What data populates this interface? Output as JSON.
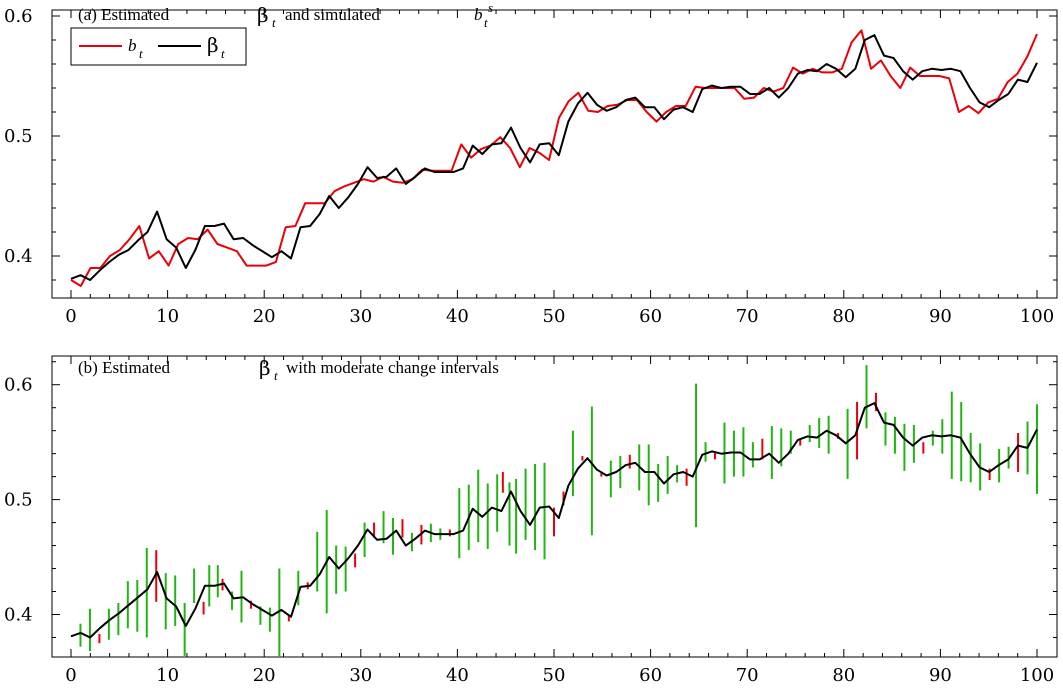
{
  "chart_data": [
    {
      "type": "line",
      "title": "(a) Estimated β t and simulated b t s",
      "title_parts": {
        "prefix": "(a) Estimated",
        "beta": "β",
        "beta_sub": "t",
        "mid": "and simulated",
        "b": "b",
        "b_sub": "t",
        "b_sup": "s"
      },
      "xlim": [
        0,
        100
      ],
      "ylim": [
        0.365,
        0.605
      ],
      "xticks": [
        0,
        10,
        20,
        30,
        40,
        50,
        60,
        70,
        80,
        90,
        100
      ],
      "yticks": [
        0.4,
        0.5,
        0.6
      ],
      "ytick_labels": [
        "0.4",
        "0.5",
        "0.6"
      ],
      "legend": {
        "placement": "top-left",
        "entries": [
          {
            "name": "b",
            "sub": "t",
            "color": "#e8000b"
          },
          {
            "name": "β",
            "sub": "t",
            "color": "#000000"
          }
        ]
      },
      "series": [
        {
          "name": "b t",
          "color": "#e8000b",
          "values": [
            0.38,
            0.375,
            0.39,
            0.39,
            0.4,
            0.405,
            0.414,
            0.425,
            0.398,
            0.404,
            0.392,
            0.41,
            0.415,
            0.414,
            0.422,
            0.41,
            0.407,
            0.404,
            0.392,
            0.392,
            0.392,
            0.395,
            0.424,
            0.425,
            0.444,
            0.444,
            0.444,
            0.454,
            0.458,
            0.461,
            0.464,
            0.462,
            0.466,
            0.462,
            0.461,
            0.464,
            0.472,
            0.471,
            0.471,
            0.471,
            0.493,
            0.482,
            0.489,
            0.492,
            0.499,
            0.49,
            0.474,
            0.49,
            0.486,
            0.48,
            0.515,
            0.529,
            0.536,
            0.521,
            0.52,
            0.525,
            0.526,
            0.53,
            0.53,
            0.52,
            0.512,
            0.52,
            0.525,
            0.525,
            0.541,
            0.54,
            0.54,
            0.54,
            0.54,
            0.531,
            0.532,
            0.54,
            0.537,
            0.54,
            0.557,
            0.552,
            0.556,
            0.553,
            0.553,
            0.556,
            0.578,
            0.588,
            0.556,
            0.563,
            0.55,
            0.54,
            0.557,
            0.55,
            0.55,
            0.55,
            0.548,
            0.52,
            0.525,
            0.519,
            0.528,
            0.531,
            0.545,
            0.552,
            0.566,
            0.585
          ]
        },
        {
          "name": "β t",
          "color": "#000000",
          "values": [
            0.381,
            0.384,
            0.38,
            0.388,
            0.395,
            0.401,
            0.405,
            0.413,
            0.42,
            0.437,
            0.414,
            0.407,
            0.39,
            0.405,
            0.425,
            0.425,
            0.427,
            0.414,
            0.415,
            0.409,
            0.404,
            0.399,
            0.404,
            0.398,
            0.424,
            0.425,
            0.435,
            0.45,
            0.44,
            0.449,
            0.46,
            0.474,
            0.465,
            0.466,
            0.473,
            0.46,
            0.466,
            0.473,
            0.47,
            0.47,
            0.47,
            0.473,
            0.492,
            0.485,
            0.493,
            0.494,
            0.507,
            0.49,
            0.478,
            0.493,
            0.494,
            0.484,
            0.512,
            0.527,
            0.536,
            0.526,
            0.521,
            0.524,
            0.53,
            0.532,
            0.524,
            0.524,
            0.514,
            0.522,
            0.524,
            0.52,
            0.539,
            0.542,
            0.54,
            0.541,
            0.541,
            0.535,
            0.535,
            0.54,
            0.532,
            0.54,
            0.552,
            0.555,
            0.554,
            0.56,
            0.556,
            0.549,
            0.556,
            0.58,
            0.584,
            0.567,
            0.565,
            0.554,
            0.547,
            0.554,
            0.556,
            0.555,
            0.556,
            0.554,
            0.54,
            0.528,
            0.524,
            0.53,
            0.535,
            0.547,
            0.545,
            0.561
          ]
        }
      ]
    },
    {
      "type": "line",
      "title": "(b) Estimated β t with moderate change intervals",
      "title_parts": {
        "prefix": "(b) Estimated",
        "beta": "β",
        "beta_sub": "t",
        "rest": "with moderate change intervals"
      },
      "xlim": [
        0,
        100
      ],
      "ylim": [
        0.363,
        0.625
      ],
      "xticks": [
        0,
        10,
        20,
        30,
        40,
        50,
        60,
        70,
        80,
        90,
        100
      ],
      "yticks": [
        0.4,
        0.5,
        0.6
      ],
      "ytick_labels": [
        "0.4",
        "0.5",
        "0.6"
      ],
      "series": [
        {
          "name": "β t",
          "color": "#000000",
          "values": [
            0.381,
            0.384,
            0.38,
            0.388,
            0.395,
            0.401,
            0.408,
            0.415,
            0.422,
            0.437,
            0.414,
            0.407,
            0.39,
            0.405,
            0.425,
            0.425,
            0.427,
            0.414,
            0.415,
            0.409,
            0.404,
            0.399,
            0.404,
            0.398,
            0.424,
            0.425,
            0.435,
            0.45,
            0.44,
            0.449,
            0.46,
            0.474,
            0.465,
            0.466,
            0.473,
            0.46,
            0.466,
            0.473,
            0.47,
            0.47,
            0.47,
            0.473,
            0.492,
            0.485,
            0.493,
            0.49,
            0.507,
            0.49,
            0.478,
            0.493,
            0.494,
            0.484,
            0.512,
            0.527,
            0.536,
            0.526,
            0.521,
            0.524,
            0.53,
            0.532,
            0.524,
            0.524,
            0.514,
            0.522,
            0.524,
            0.52,
            0.539,
            0.542,
            0.54,
            0.541,
            0.541,
            0.535,
            0.535,
            0.54,
            0.532,
            0.54,
            0.552,
            0.555,
            0.554,
            0.56,
            0.556,
            0.549,
            0.556,
            0.58,
            0.584,
            0.567,
            0.565,
            0.554,
            0.547,
            0.554,
            0.556,
            0.555,
            0.556,
            0.554,
            0.54,
            0.528,
            0.524,
            0.53,
            0.535,
            0.547,
            0.545,
            0.561
          ]
        }
      ],
      "intervals": [
        {
          "x": 1,
          "lo": 0.372,
          "hi": 0.392,
          "color": "#22b512"
        },
        {
          "x": 2,
          "lo": 0.368,
          "hi": 0.405,
          "color": "#22b512"
        },
        {
          "x": 3,
          "lo": 0.375,
          "hi": 0.383,
          "color": "#e8000b"
        },
        {
          "x": 4,
          "lo": 0.378,
          "hi": 0.405,
          "color": "#22b512"
        },
        {
          "x": 5,
          "lo": 0.382,
          "hi": 0.41,
          "color": "#22b512"
        },
        {
          "x": 6,
          "lo": 0.388,
          "hi": 0.429,
          "color": "#22b512"
        },
        {
          "x": 7,
          "lo": 0.385,
          "hi": 0.43,
          "color": "#22b512"
        },
        {
          "x": 8,
          "lo": 0.38,
          "hi": 0.458,
          "color": "#22b512"
        },
        {
          "x": 9,
          "lo": 0.411,
          "hi": 0.456,
          "color": "#e8000b"
        },
        {
          "x": 10,
          "lo": 0.387,
          "hi": 0.436,
          "color": "#22b512"
        },
        {
          "x": 11,
          "lo": 0.39,
          "hi": 0.434,
          "color": "#22b512"
        },
        {
          "x": 12,
          "lo": 0.364,
          "hi": 0.41,
          "color": "#22b512"
        },
        {
          "x": 13,
          "lo": 0.41,
          "hi": 0.44,
          "color": "#22b512"
        },
        {
          "x": 14,
          "lo": 0.4,
          "hi": 0.411,
          "color": "#e8000b"
        },
        {
          "x": 14.6,
          "lo": 0.407,
          "hi": 0.443,
          "color": "#22b512"
        },
        {
          "x": 15.5,
          "lo": 0.415,
          "hi": 0.443,
          "color": "#22b512"
        },
        {
          "x": 16,
          "lo": 0.421,
          "hi": 0.431,
          "color": "#e8000b"
        },
        {
          "x": 17,
          "lo": 0.404,
          "hi": 0.42,
          "color": "#22b512"
        },
        {
          "x": 18,
          "lo": 0.393,
          "hi": 0.438,
          "color": "#22b512"
        },
        {
          "x": 19,
          "lo": 0.405,
          "hi": 0.412,
          "color": "#e8000b"
        },
        {
          "x": 20,
          "lo": 0.391,
          "hi": 0.407,
          "color": "#22b512"
        },
        {
          "x": 21,
          "lo": 0.385,
          "hi": 0.406,
          "color": "#22b512"
        },
        {
          "x": 22,
          "lo": 0.363,
          "hi": 0.44,
          "color": "#22b512"
        },
        {
          "x": 23,
          "lo": 0.394,
          "hi": 0.4,
          "color": "#e8000b"
        },
        {
          "x": 24,
          "lo": 0.408,
          "hi": 0.438,
          "color": "#22b512"
        },
        {
          "x": 25,
          "lo": 0.422,
          "hi": 0.428,
          "color": "#e8000b"
        },
        {
          "x": 26,
          "lo": 0.42,
          "hi": 0.472,
          "color": "#22b512"
        },
        {
          "x": 27,
          "lo": 0.401,
          "hi": 0.491,
          "color": "#22b512"
        },
        {
          "x": 28,
          "lo": 0.418,
          "hi": 0.46,
          "color": "#22b512"
        },
        {
          "x": 29,
          "lo": 0.42,
          "hi": 0.459,
          "color": "#22b512"
        },
        {
          "x": 30,
          "lo": 0.441,
          "hi": 0.453,
          "color": "#e8000b"
        },
        {
          "x": 31,
          "lo": 0.45,
          "hi": 0.48,
          "color": "#22b512"
        },
        {
          "x": 32,
          "lo": 0.467,
          "hi": 0.48,
          "color": "#e8000b"
        },
        {
          "x": 33,
          "lo": 0.462,
          "hi": 0.49,
          "color": "#22b512"
        },
        {
          "x": 34,
          "lo": 0.452,
          "hi": 0.484,
          "color": "#22b512"
        },
        {
          "x": 35,
          "lo": 0.467,
          "hi": 0.483,
          "color": "#e8000b"
        },
        {
          "x": 36,
          "lo": 0.455,
          "hi": 0.471,
          "color": "#22b512"
        },
        {
          "x": 37,
          "lo": 0.461,
          "hi": 0.478,
          "color": "#e8000b"
        },
        {
          "x": 38,
          "lo": 0.463,
          "hi": 0.479,
          "color": "#22b512"
        },
        {
          "x": 39,
          "lo": 0.465,
          "hi": 0.475,
          "color": "#22b512"
        },
        {
          "x": 40,
          "lo": 0.468,
          "hi": 0.474,
          "color": "#e8000b"
        },
        {
          "x": 41,
          "lo": 0.449,
          "hi": 0.51,
          "color": "#22b512"
        },
        {
          "x": 42,
          "lo": 0.456,
          "hi": 0.513,
          "color": "#22b512"
        },
        {
          "x": 43,
          "lo": 0.463,
          "hi": 0.526,
          "color": "#22b512"
        },
        {
          "x": 44,
          "lo": 0.457,
          "hi": 0.514,
          "color": "#22b512"
        },
        {
          "x": 45,
          "lo": 0.472,
          "hi": 0.522,
          "color": "#22b512"
        },
        {
          "x": 45.6,
          "lo": 0.506,
          "hi": 0.524,
          "color": "#e8000b"
        },
        {
          "x": 46.3,
          "lo": 0.46,
          "hi": 0.515,
          "color": "#22b512"
        },
        {
          "x": 47,
          "lo": 0.453,
          "hi": 0.518,
          "color": "#22b512"
        },
        {
          "x": 48,
          "lo": 0.465,
          "hi": 0.527,
          "color": "#22b512"
        },
        {
          "x": 49,
          "lo": 0.456,
          "hi": 0.531,
          "color": "#22b512"
        },
        {
          "x": 50,
          "lo": 0.448,
          "hi": 0.532,
          "color": "#22b512"
        },
        {
          "x": 51,
          "lo": 0.468,
          "hi": 0.493,
          "color": "#e8000b"
        },
        {
          "x": 52,
          "lo": 0.495,
          "hi": 0.507,
          "color": "#e8000b"
        },
        {
          "x": 53,
          "lo": 0.503,
          "hi": 0.56,
          "color": "#22b512"
        },
        {
          "x": 54,
          "lo": 0.534,
          "hi": 0.538,
          "color": "#e8000b"
        },
        {
          "x": 55,
          "lo": 0.469,
          "hi": 0.581,
          "color": "#22b512"
        },
        {
          "x": 56,
          "lo": 0.52,
          "hi": 0.523,
          "color": "#e8000b"
        },
        {
          "x": 57,
          "lo": 0.502,
          "hi": 0.534,
          "color": "#22b512"
        },
        {
          "x": 58,
          "lo": 0.51,
          "hi": 0.538,
          "color": "#22b512"
        },
        {
          "x": 59,
          "lo": 0.527,
          "hi": 0.539,
          "color": "#e8000b"
        },
        {
          "x": 60,
          "lo": 0.508,
          "hi": 0.548,
          "color": "#22b512"
        },
        {
          "x": 61,
          "lo": 0.495,
          "hi": 0.548,
          "color": "#22b512"
        },
        {
          "x": 62,
          "lo": 0.498,
          "hi": 0.531,
          "color": "#22b512"
        },
        {
          "x": 63,
          "lo": 0.505,
          "hi": 0.538,
          "color": "#22b512"
        },
        {
          "x": 64,
          "lo": 0.515,
          "hi": 0.53,
          "color": "#22b512"
        },
        {
          "x": 65,
          "lo": 0.512,
          "hi": 0.527,
          "color": "#e8000b"
        },
        {
          "x": 66,
          "lo": 0.476,
          "hi": 0.601,
          "color": "#22b512"
        },
        {
          "x": 67,
          "lo": 0.533,
          "hi": 0.55,
          "color": "#22b512"
        },
        {
          "x": 68,
          "lo": 0.535,
          "hi": 0.542,
          "color": "#e8000b"
        },
        {
          "x": 69,
          "lo": 0.514,
          "hi": 0.567,
          "color": "#22b512"
        },
        {
          "x": 70,
          "lo": 0.52,
          "hi": 0.56,
          "color": "#22b512"
        },
        {
          "x": 71,
          "lo": 0.52,
          "hi": 0.563,
          "color": "#22b512"
        },
        {
          "x": 72,
          "lo": 0.528,
          "hi": 0.55,
          "color": "#22b512"
        },
        {
          "x": 73,
          "lo": 0.535,
          "hi": 0.553,
          "color": "#e8000b"
        },
        {
          "x": 74,
          "lo": 0.518,
          "hi": 0.564,
          "color": "#22b512"
        },
        {
          "x": 75,
          "lo": 0.529,
          "hi": 0.562,
          "color": "#22b512"
        },
        {
          "x": 76,
          "lo": 0.54,
          "hi": 0.56,
          "color": "#22b512"
        },
        {
          "x": 77,
          "lo": 0.547,
          "hi": 0.553,
          "color": "#e8000b"
        },
        {
          "x": 78,
          "lo": 0.55,
          "hi": 0.565,
          "color": "#22b512"
        },
        {
          "x": 79,
          "lo": 0.545,
          "hi": 0.571,
          "color": "#22b512"
        },
        {
          "x": 80,
          "lo": 0.54,
          "hi": 0.573,
          "color": "#22b512"
        },
        {
          "x": 81,
          "lo": 0.553,
          "hi": 0.558,
          "color": "#e8000b"
        },
        {
          "x": 82,
          "lo": 0.518,
          "hi": 0.579,
          "color": "#22b512"
        },
        {
          "x": 83,
          "lo": 0.535,
          "hi": 0.585,
          "color": "#e8000b"
        },
        {
          "x": 84,
          "lo": 0.562,
          "hi": 0.617,
          "color": "#22b512"
        },
        {
          "x": 85,
          "lo": 0.577,
          "hi": 0.593,
          "color": "#e8000b"
        },
        {
          "x": 86,
          "lo": 0.547,
          "hi": 0.576,
          "color": "#22b512"
        },
        {
          "x": 87,
          "lo": 0.54,
          "hi": 0.572,
          "color": "#22b512"
        },
        {
          "x": 88,
          "lo": 0.525,
          "hi": 0.566,
          "color": "#22b512"
        },
        {
          "x": 89,
          "lo": 0.532,
          "hi": 0.565,
          "color": "#22b512"
        },
        {
          "x": 90,
          "lo": 0.54,
          "hi": 0.55,
          "color": "#e8000b"
        },
        {
          "x": 91,
          "lo": 0.547,
          "hi": 0.56,
          "color": "#22b512"
        },
        {
          "x": 92,
          "lo": 0.54,
          "hi": 0.57,
          "color": "#22b512"
        },
        {
          "x": 93,
          "lo": 0.518,
          "hi": 0.594,
          "color": "#22b512"
        },
        {
          "x": 94,
          "lo": 0.516,
          "hi": 0.585,
          "color": "#22b512"
        },
        {
          "x": 95,
          "lo": 0.515,
          "hi": 0.558,
          "color": "#22b512"
        },
        {
          "x": 96,
          "lo": 0.508,
          "hi": 0.549,
          "color": "#22b512"
        },
        {
          "x": 97,
          "lo": 0.517,
          "hi": 0.527,
          "color": "#e8000b"
        },
        {
          "x": 98,
          "lo": 0.515,
          "hi": 0.544,
          "color": "#22b512"
        },
        {
          "x": 99,
          "lo": 0.527,
          "hi": 0.546,
          "color": "#22b512"
        },
        {
          "x": 100,
          "lo": 0.524,
          "hi": 0.558,
          "color": "#e8000b"
        },
        {
          "x": 101,
          "lo": 0.522,
          "hi": 0.568,
          "color": "#22b512"
        },
        {
          "x": 102,
          "lo": 0.505,
          "hi": 0.583,
          "color": "#22b512"
        }
      ]
    }
  ]
}
